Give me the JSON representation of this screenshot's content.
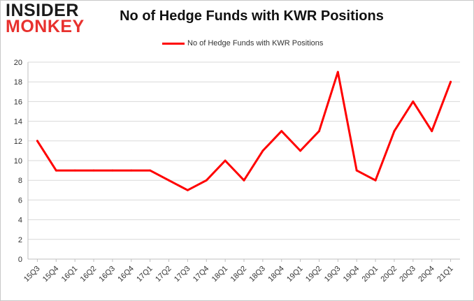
{
  "logo": {
    "line1": "INSIDER",
    "line2": "MONKEY"
  },
  "chart_data": {
    "type": "line",
    "title": "No of Hedge Funds with KWR Positions",
    "xlabel": "",
    "ylabel": "",
    "categories": [
      "15Q3",
      "15Q4",
      "16Q1",
      "16Q2",
      "16Q3",
      "16Q4",
      "17Q1",
      "17Q2",
      "17Q3",
      "17Q4",
      "18Q1",
      "18Q2",
      "18Q3",
      "18Q4",
      "19Q1",
      "19Q2",
      "19Q3",
      "19Q4",
      "20Q1",
      "20Q2",
      "20Q3",
      "20Q4",
      "21Q1"
    ],
    "series": [
      {
        "name": "No of Hedge Funds with KWR Positions",
        "values": [
          12,
          9,
          9,
          9,
          9,
          9,
          9,
          8,
          7,
          8,
          10,
          8,
          11,
          13,
          11,
          13,
          19,
          9,
          8,
          13,
          16,
          13,
          18
        ]
      }
    ],
    "ylim": [
      0,
      20
    ],
    "yticks": [
      0,
      2,
      4,
      6,
      8,
      10,
      12,
      14,
      16,
      18,
      20
    ],
    "grid": "horizontal",
    "legend_position": "top-center",
    "line_color": "#ff0000",
    "grid_color": "#d9d9d9"
  }
}
